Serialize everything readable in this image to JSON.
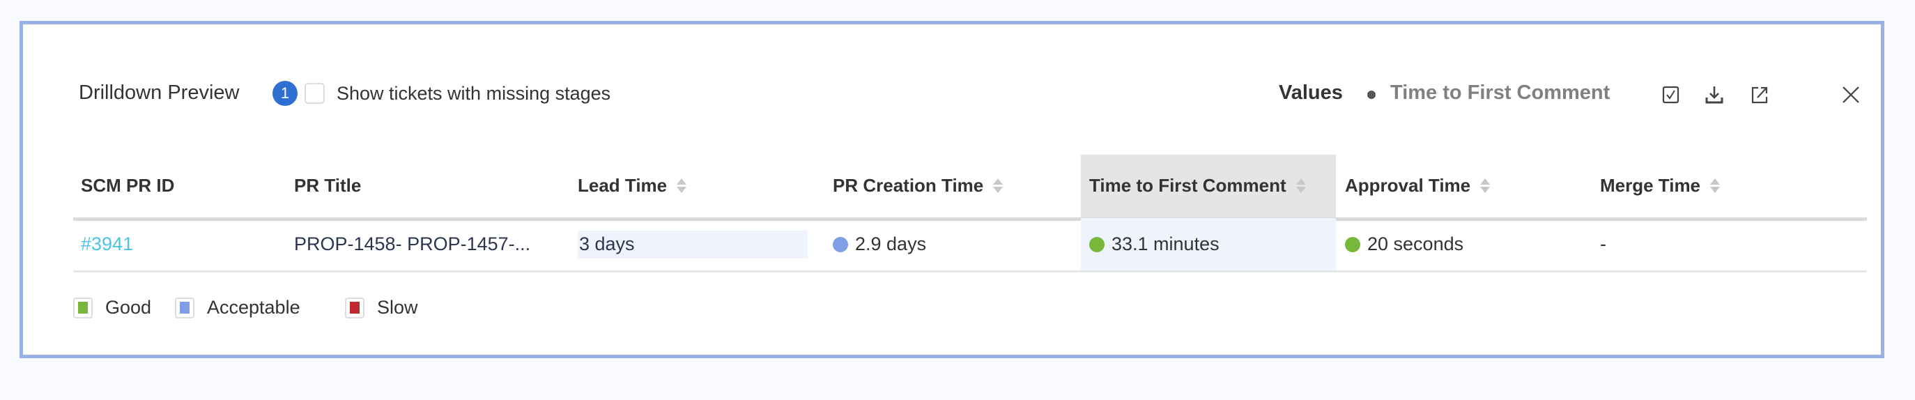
{
  "header": {
    "title": "Drilldown Preview",
    "badge_count": "1",
    "missing_stages_label": "Show tickets with missing stages",
    "missing_stages_checked": false,
    "values_label": "Values",
    "metric_label": "Time to First Comment",
    "icons": [
      "checkbox-list-icon",
      "download-icon",
      "open-external-icon",
      "close-icon"
    ]
  },
  "table": {
    "columns": [
      {
        "label": "SCM PR ID",
        "sortable": false
      },
      {
        "label": "PR Title",
        "sortable": false
      },
      {
        "label": "Lead Time",
        "sortable": true
      },
      {
        "label": "PR Creation Time",
        "sortable": true
      },
      {
        "label": "Time to First Comment",
        "sortable": true,
        "highlighted": true
      },
      {
        "label": "Approval Time",
        "sortable": true
      },
      {
        "label": "Merge Time",
        "sortable": true
      }
    ],
    "rows": [
      {
        "pr_id": "#3941",
        "pr_title": "PROP-1458- PROP-1457-...",
        "lead_time": "3 days",
        "pr_creation_time": "2.9 days",
        "pr_creation_status": "acceptable",
        "time_to_first_comment": "33.1 minutes",
        "time_to_first_comment_status": "good",
        "approval_time": "20 seconds",
        "approval_status": "good",
        "merge_time": "-"
      }
    ]
  },
  "legend": [
    {
      "label": "Good",
      "color": "#77b83a"
    },
    {
      "label": "Acceptable",
      "color": "#7f9ee6"
    },
    {
      "label": "Slow",
      "color": "#c0282d"
    }
  ],
  "colors": {
    "link": "#4cc3e6",
    "border": "#9bb0e6",
    "badge": "#2f6fd1"
  }
}
